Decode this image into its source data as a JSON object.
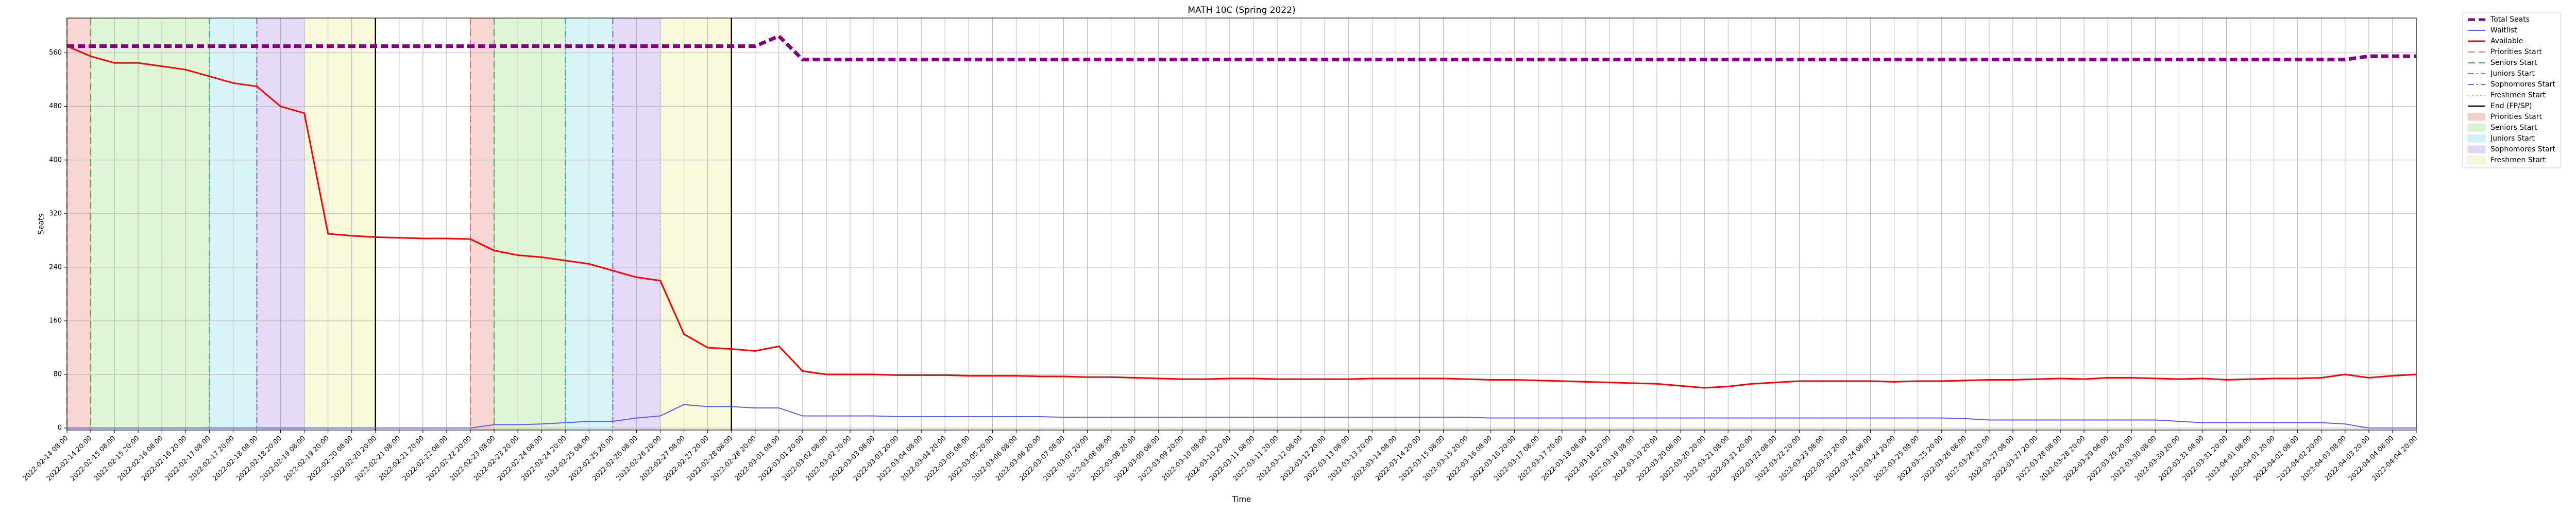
{
  "chart_data": {
    "type": "line",
    "title": "MATH 10C (Spring 2022)",
    "x_label": "Time",
    "y_label": "Seats",
    "grid": true,
    "legend": "outside-upper-right",
    "ylim": [
      -3,
      612
    ],
    "yticks": [
      0,
      80,
      160,
      240,
      320,
      400,
      480,
      560
    ],
    "x": [
      "2022-02-14 08:00",
      "2022-02-14 20:00",
      "2022-02-15 08:00",
      "2022-02-15 20:00",
      "2022-02-16 08:00",
      "2022-02-16 20:00",
      "2022-02-17 08:00",
      "2022-02-17 20:00",
      "2022-02-18 08:00",
      "2022-02-18 20:00",
      "2022-02-19 08:00",
      "2022-02-19 20:00",
      "2022-02-20 08:00",
      "2022-02-20 20:00",
      "2022-02-21 08:00",
      "2022-02-21 20:00",
      "2022-02-22 08:00",
      "2022-02-22 20:00",
      "2022-02-23 08:00",
      "2022-02-23 20:00",
      "2022-02-24 08:00",
      "2022-02-24 20:00",
      "2022-02-25 08:00",
      "2022-02-25 20:00",
      "2022-02-26 08:00",
      "2022-02-26 20:00",
      "2022-02-27 08:00",
      "2022-02-27 20:00",
      "2022-02-28 08:00",
      "2022-02-28 20:00",
      "2022-03-01 08:00",
      "2022-03-01 20:00",
      "2022-03-02 08:00",
      "2022-03-02 20:00",
      "2022-03-03 08:00",
      "2022-03-03 20:00",
      "2022-03-04 08:00",
      "2022-03-04 20:00",
      "2022-03-05 08:00",
      "2022-03-05 20:00",
      "2022-03-06 08:00",
      "2022-03-06 20:00",
      "2022-03-07 08:00",
      "2022-03-07 20:00",
      "2022-03-08 08:00",
      "2022-03-08 20:00",
      "2022-03-09 08:00",
      "2022-03-09 20:00",
      "2022-03-10 08:00",
      "2022-03-10 20:00",
      "2022-03-11 08:00",
      "2022-03-11 20:00",
      "2022-03-12 08:00",
      "2022-03-12 20:00",
      "2022-03-13 08:00",
      "2022-03-13 20:00",
      "2022-03-14 08:00",
      "2022-03-14 20:00",
      "2022-03-15 08:00",
      "2022-03-15 20:00",
      "2022-03-16 08:00",
      "2022-03-16 20:00",
      "2022-03-17 08:00",
      "2022-03-17 20:00",
      "2022-03-18 08:00",
      "2022-03-18 20:00",
      "2022-03-19 08:00",
      "2022-03-19 20:00",
      "2022-03-20 08:00",
      "2022-03-20 20:00",
      "2022-03-21 08:00",
      "2022-03-21 20:00",
      "2022-03-22 08:00",
      "2022-03-22 20:00",
      "2022-03-23 08:00",
      "2022-03-23 20:00",
      "2022-03-24 08:00",
      "2022-03-24 20:00",
      "2022-03-25 08:00",
      "2022-03-25 20:00",
      "2022-03-26 08:00",
      "2022-03-26 20:00",
      "2022-03-27 08:00",
      "2022-03-27 20:00",
      "2022-03-28 08:00",
      "2022-03-28 20:00",
      "2022-03-29 08:00",
      "2022-03-29 20:00",
      "2022-03-30 08:00",
      "2022-03-30 20:00",
      "2022-03-31 08:00",
      "2022-03-31 20:00",
      "2022-04-01 08:00",
      "2022-04-01 20:00",
      "2022-04-02 08:00",
      "2022-04-02 20:00",
      "2022-04-03 08:00",
      "2022-04-03 20:00",
      "2022-04-04 08:00",
      "2022-04-04 20:00"
    ],
    "series": [
      {
        "name": "Total Seats",
        "color": "#800080",
        "line_style": "dashed",
        "width": 7,
        "values": [
          570,
          570,
          570,
          570,
          570,
          570,
          570,
          570,
          570,
          570,
          570,
          570,
          570,
          570,
          570,
          570,
          570,
          570,
          570,
          570,
          570,
          570,
          570,
          570,
          570,
          570,
          570,
          570,
          570,
          570,
          585,
          550,
          550,
          550,
          550,
          550,
          550,
          550,
          550,
          550,
          550,
          550,
          550,
          550,
          550,
          550,
          550,
          550,
          550,
          550,
          550,
          550,
          550,
          550,
          550,
          550,
          550,
          550,
          550,
          550,
          550,
          550,
          550,
          550,
          550,
          550,
          550,
          550,
          550,
          550,
          550,
          550,
          550,
          550,
          550,
          550,
          550,
          550,
          550,
          550,
          550,
          550,
          550,
          550,
          550,
          550,
          550,
          550,
          550,
          550,
          550,
          550,
          550,
          550,
          550,
          550,
          550,
          555,
          555,
          555
        ]
      },
      {
        "name": "Waitlist",
        "color": "#5a5aff",
        "line_style": "solid",
        "width": 2,
        "values": [
          0,
          0,
          0,
          0,
          0,
          0,
          0,
          0,
          0,
          0,
          0,
          0,
          0,
          0,
          0,
          0,
          0,
          0,
          5,
          5,
          6,
          8,
          10,
          10,
          15,
          18,
          35,
          32,
          32,
          30,
          30,
          18,
          18,
          18,
          18,
          17,
          17,
          17,
          17,
          17,
          17,
          17,
          16,
          16,
          16,
          16,
          16,
          16,
          16,
          16,
          16,
          16,
          16,
          16,
          16,
          16,
          16,
          16,
          16,
          16,
          15,
          15,
          15,
          15,
          15,
          15,
          15,
          15,
          15,
          15,
          15,
          15,
          15,
          15,
          15,
          15,
          15,
          15,
          15,
          15,
          14,
          12,
          12,
          12,
          12,
          12,
          12,
          12,
          12,
          10,
          8,
          8,
          8,
          8,
          8,
          8,
          6,
          0,
          0,
          0
        ]
      },
      {
        "name": "Available",
        "color": "#ff0000",
        "line_style": "solid",
        "width": 3,
        "values": [
          570,
          555,
          545,
          545,
          540,
          535,
          525,
          515,
          510,
          480,
          470,
          290,
          287,
          285,
          284,
          283,
          283,
          282,
          265,
          258,
          255,
          250,
          245,
          235,
          225,
          220,
          140,
          120,
          118,
          115,
          122,
          85,
          80,
          80,
          80,
          79,
          79,
          79,
          78,
          78,
          78,
          77,
          77,
          76,
          76,
          75,
          74,
          73,
          73,
          74,
          74,
          73,
          73,
          73,
          73,
          74,
          74,
          74,
          74,
          73,
          72,
          72,
          71,
          70,
          69,
          68,
          67,
          66,
          63,
          60,
          62,
          66,
          68,
          70,
          70,
          70,
          70,
          69,
          70,
          70,
          71,
          72,
          72,
          73,
          74,
          73,
          75,
          75,
          74,
          73,
          74,
          72,
          73,
          74,
          74,
          75,
          80,
          75,
          78,
          80
        ]
      }
    ],
    "phases": [
      {
        "name": "Priorities Start",
        "line_color": "#e8706a",
        "line_style": "dashed",
        "fill": "#f6cfcb",
        "spans": [
          [
            "2022-02-14 08:00",
            "2022-02-14 20:00"
          ],
          [
            "2022-02-22 20:00",
            "2022-02-23 08:00"
          ]
        ]
      },
      {
        "name": "Seniors Start",
        "line_color": "#3cb043",
        "line_style": "dashed",
        "fill": "#d8f5cf",
        "spans": [
          [
            "2022-02-14 20:00",
            "2022-02-17 08:00"
          ],
          [
            "2022-02-23 08:00",
            "2022-02-24 20:00"
          ]
        ]
      },
      {
        "name": "Juniors Start",
        "line_color": "#20b2aa",
        "line_style": "dashdot",
        "fill": "#d2f2f6",
        "spans": [
          [
            "2022-02-17 08:00",
            "2022-02-18 08:00"
          ],
          [
            "2022-02-24 20:00",
            "2022-02-25 20:00"
          ]
        ]
      },
      {
        "name": "Sophomores Start",
        "line_color": "#8a5bd6",
        "line_style": "dashdot",
        "fill": "#e2d5f6",
        "spans": [
          [
            "2022-02-18 08:00",
            "2022-02-19 08:00"
          ],
          [
            "2022-02-25 20:00",
            "2022-02-26 20:00"
          ]
        ]
      },
      {
        "name": "Freshmen Start",
        "line_color": "#c8c85a",
        "line_style": "dotted",
        "fill": "#f8f8d6",
        "spans": [
          [
            "2022-02-19 08:00",
            "2022-02-20 20:00"
          ],
          [
            "2022-02-26 20:00",
            "2022-02-28 08:00"
          ]
        ]
      }
    ],
    "end_marker": {
      "name": "End (FP/SP)",
      "color": "#000000",
      "x": [
        "2022-02-20 20:00",
        "2022-02-28 08:00"
      ]
    }
  }
}
